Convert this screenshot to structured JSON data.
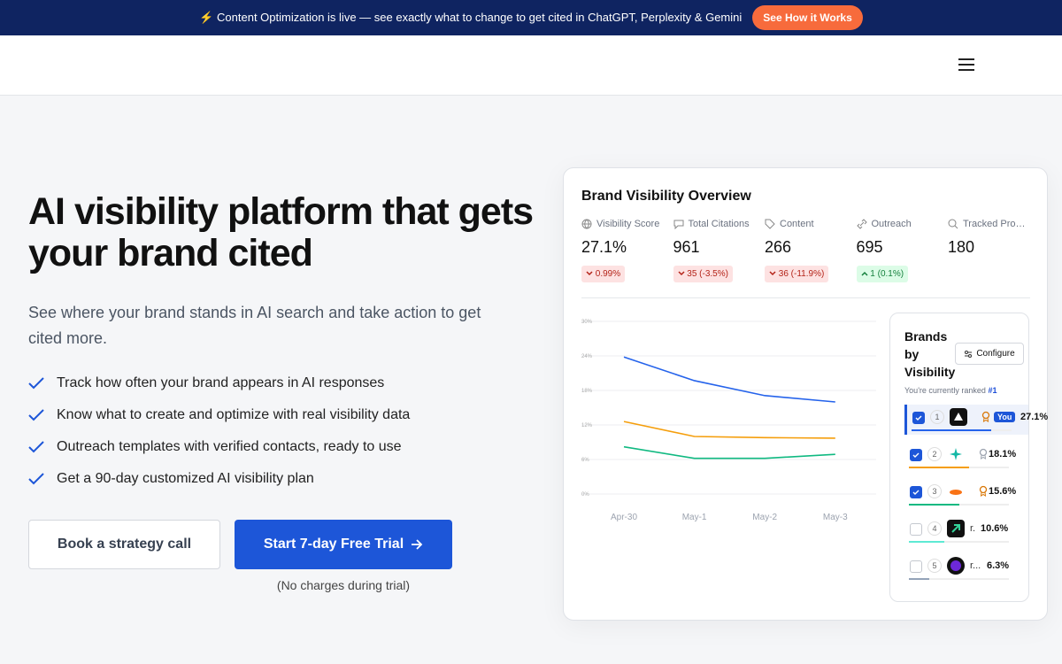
{
  "banner": {
    "text": "⚡ Content Optimization is live — see exactly what to change to get cited in ChatGPT, Perplexity & Gemini",
    "button": "See How it Works"
  },
  "hero": {
    "title": "AI visibility platform that gets your brand cited",
    "subtitle": "See where your brand stands in AI search and take action to get cited more.",
    "features": [
      "Track how often your brand appears in AI responses",
      "Know what to create and optimize with real visibility data",
      "Outreach templates with verified contacts, ready to use",
      "Get a 90-day customized AI visibility plan"
    ],
    "secondary_button": "Book a strategy call",
    "primary_button": "Start 7-day Free Trial",
    "note": "(No charges during trial)"
  },
  "dashboard": {
    "title": "Brand Visibility Overview",
    "metrics": [
      {
        "label": "Visibility Score",
        "value": "27.1%",
        "change": "0.99%",
        "trend": "down"
      },
      {
        "label": "Total Citations",
        "value": "961",
        "change": "35 (-3.5%)",
        "trend": "down"
      },
      {
        "label": "Content",
        "value": "266",
        "change": "36 (-11.9%)",
        "trend": "down"
      },
      {
        "label": "Outreach",
        "value": "695",
        "change": "1 (0.1%)",
        "trend": "up"
      },
      {
        "label": "Tracked Pro…",
        "value": "180"
      }
    ],
    "brands": {
      "title": "Brands by Visibility",
      "configure": "Configure",
      "ranked_text": "You're currently ranked",
      "rank": "#1",
      "you": "You",
      "rows": [
        {
          "rank": "1",
          "value": "27.1%",
          "checked": true,
          "color": "#2563eb",
          "bar": 0.8
        },
        {
          "rank": "2",
          "value": "18.1%",
          "checked": true,
          "color": "#f59e0b",
          "bar": 0.6
        },
        {
          "rank": "3",
          "value": "15.6%",
          "checked": true,
          "color": "#10b981",
          "bar": 0.5
        },
        {
          "rank": "4",
          "name": "r.",
          "value": "10.6%",
          "checked": false,
          "color": "#5eead4",
          "bar": 0.35
        },
        {
          "rank": "5",
          "name": "r...",
          "value": "6.3%",
          "checked": false,
          "color": "#94a3b8",
          "bar": 0.2
        }
      ]
    }
  },
  "chart_data": {
    "type": "line",
    "categories": [
      "Apr-30",
      "May-1",
      "May-2",
      "May-3"
    ],
    "series": [
      {
        "color": "#2563eb",
        "values": [
          23.8,
          19.7,
          17.1,
          16.0
        ]
      },
      {
        "color": "#f59e0b",
        "values": [
          12.6,
          10.0,
          9.8,
          9.7
        ]
      },
      {
        "color": "#10b981",
        "values": [
          8.2,
          6.2,
          6.2,
          6.9
        ]
      }
    ],
    "ylim": [
      0,
      30
    ],
    "yticks": [
      {
        "value": 0,
        "label": "0%"
      },
      {
        "value": 6,
        "label": "6%"
      },
      {
        "value": 12,
        "label": "12%"
      },
      {
        "value": 18,
        "label": "18%"
      },
      {
        "value": 24,
        "label": "24%"
      },
      {
        "value": 30,
        "label": "30%"
      }
    ],
    "grid": true
  }
}
